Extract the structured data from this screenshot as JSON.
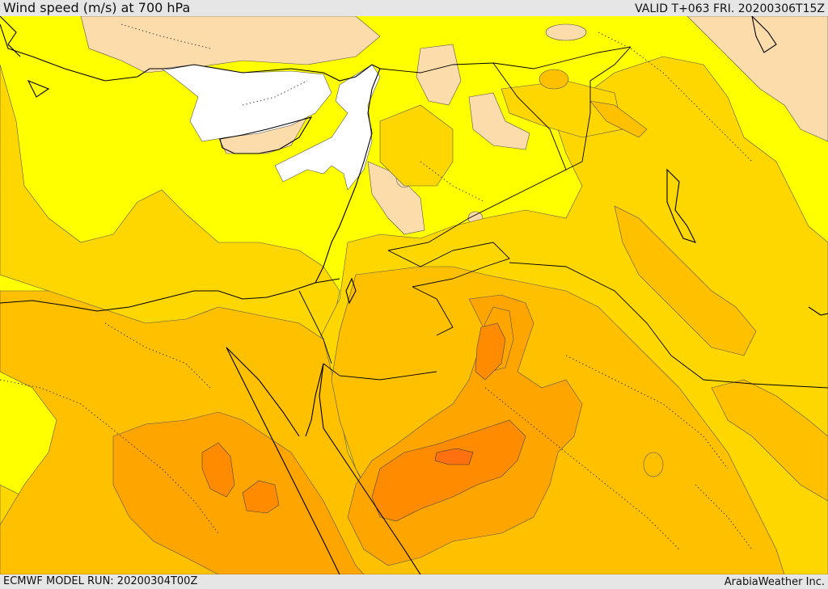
{
  "header": {
    "title": "Wind speed (m/s) at 700 hPa",
    "valid": "VALID T+063 FRI. 20200306T15Z"
  },
  "footer": {
    "model_run": "ECMWF MODEL RUN: 20200304T00Z",
    "credit": "ArabiaWeather Inc."
  },
  "colors": {
    "calm": "#ffffff",
    "light": "#fcdcaa",
    "yellow": "#ffff00",
    "gold": "#ffd700",
    "amber": "#ffc000",
    "orange": "#ffa500",
    "dark_orange": "#ff8c00",
    "strong": "#ff7010",
    "coast": "#000000",
    "contour": "#555555"
  },
  "icons": [
    "coastline",
    "country-border",
    "dotted-region-border"
  ]
}
